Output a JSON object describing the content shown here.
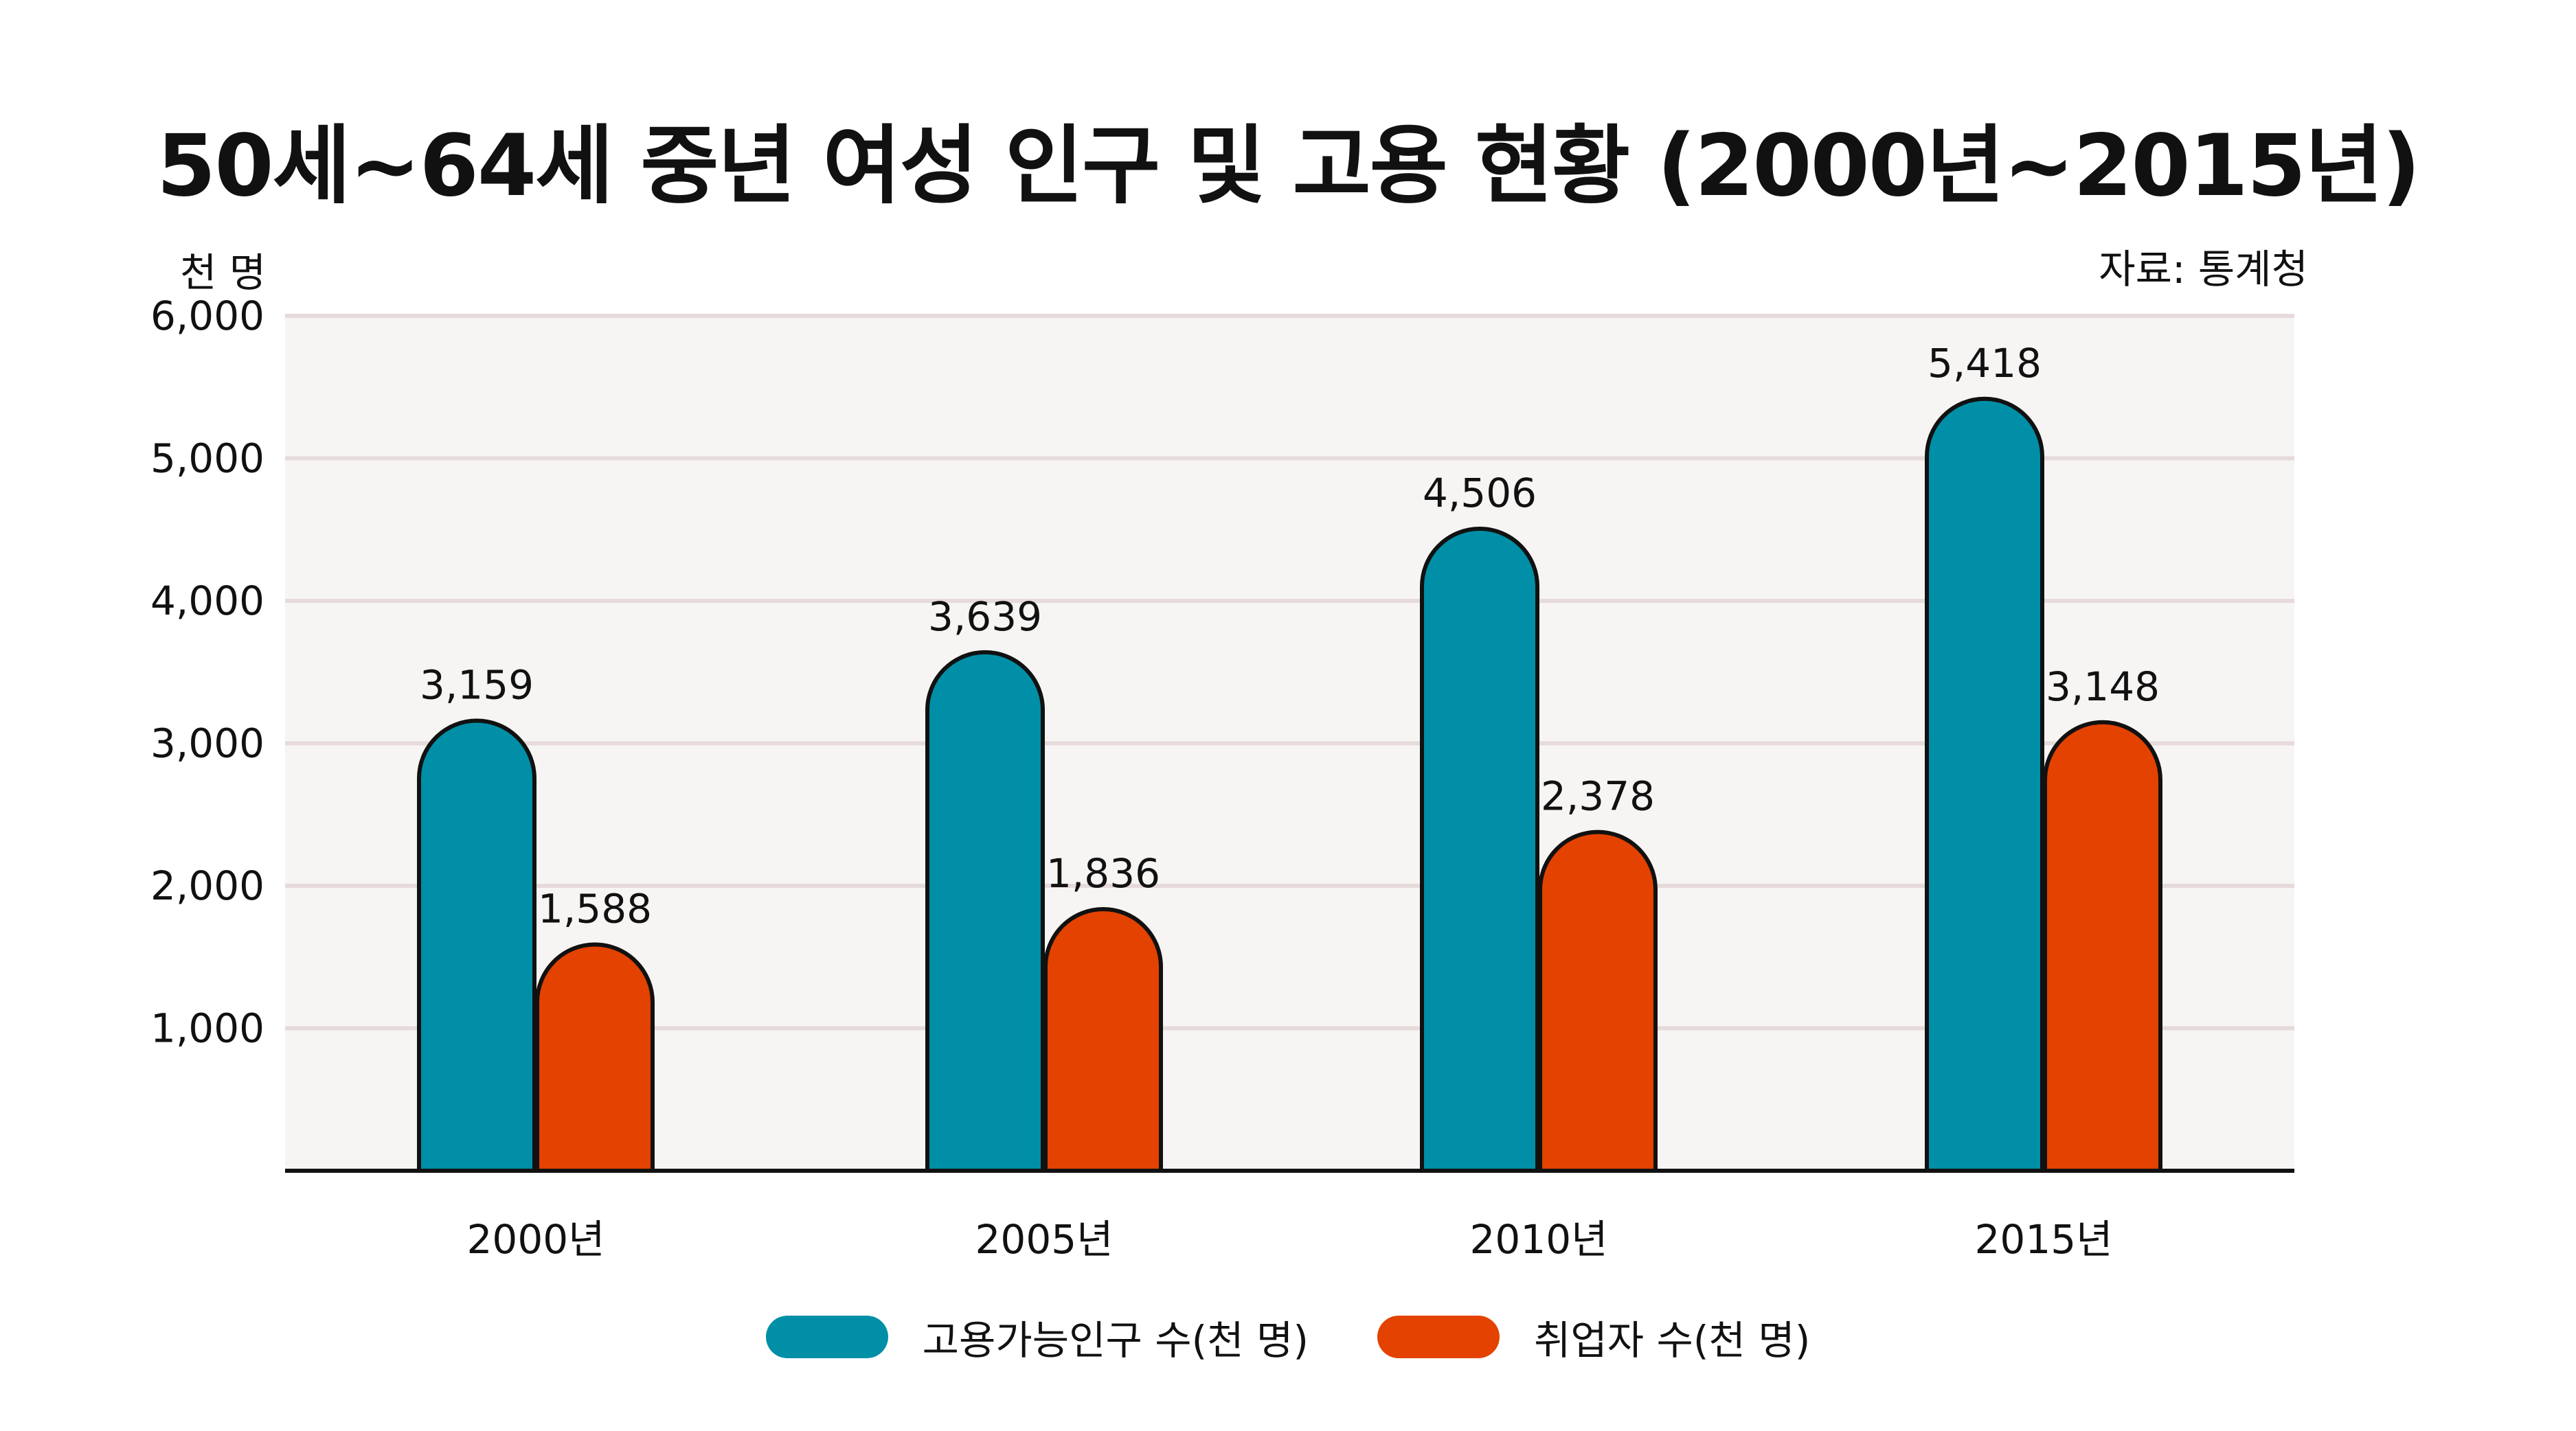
{
  "chart_data": {
    "type": "bar",
    "title": "50세~64세 중년 여성 인구 및 고용 현황 (2000년~2015년)",
    "unit_label": "천 명",
    "source": "자료: 통계청",
    "categories": [
      "2000년",
      "2005년",
      "2010년",
      "2015년"
    ],
    "series": [
      {
        "name": "고용가능인구 수(천 명)",
        "values": [
          3159,
          3639,
          4506,
          5418
        ],
        "labels": [
          "3,159",
          "3,639",
          "4,506",
          "5,418"
        ],
        "color": "#008fa6"
      },
      {
        "name": "취업자 수(천 명)",
        "values": [
          1588,
          1836,
          2378,
          3148
        ],
        "labels": [
          "1,588",
          "1,836",
          "2,378",
          "3,148"
        ],
        "color": "#e34200"
      }
    ],
    "ylim": [
      0,
      6000
    ],
    "yticks": [
      1000,
      2000,
      3000,
      4000,
      5000,
      6000
    ],
    "ytick_labels": [
      "1,000",
      "2,000",
      "3,000",
      "4,000",
      "5,000",
      "6,000"
    ],
    "grid": true,
    "legend": "bottom",
    "plot_background": "#f7f5f4",
    "grid_color": "#e6dada"
  }
}
